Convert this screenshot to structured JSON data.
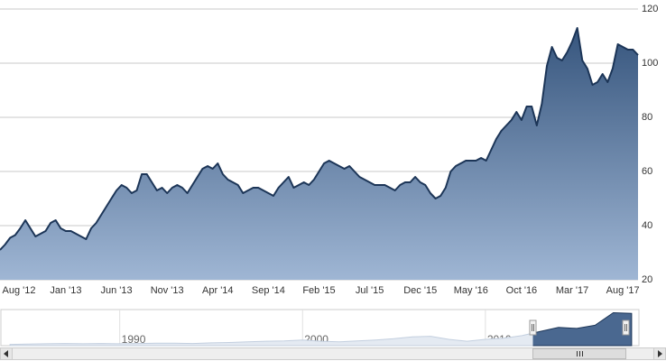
{
  "chart_data": [
    {
      "type": "area",
      "categories": [
        null,
        null,
        null,
        "Aug '12",
        null,
        null,
        null,
        null,
        null,
        null,
        null,
        null,
        null,
        "Jan '13",
        null,
        null,
        null,
        null,
        null,
        null,
        null,
        null,
        null,
        "Jun '13",
        null,
        null,
        null,
        null,
        null,
        null,
        null,
        null,
        null,
        "Nov '13",
        null,
        null,
        null,
        null,
        null,
        null,
        null,
        null,
        null,
        "Apr '14",
        null,
        null,
        null,
        null,
        null,
        null,
        null,
        null,
        null,
        "Sep '14",
        null,
        null,
        null,
        null,
        null,
        null,
        null,
        null,
        null,
        "Feb '15",
        null,
        null,
        null,
        null,
        null,
        null,
        null,
        null,
        null,
        "Jul '15",
        null,
        null,
        null,
        null,
        null,
        null,
        null,
        null,
        null,
        "Dec '15",
        null,
        null,
        null,
        null,
        null,
        null,
        null,
        null,
        null,
        "May '16",
        null,
        null,
        null,
        null,
        null,
        null,
        null,
        null,
        null,
        "Oct '16",
        null,
        null,
        null,
        null,
        null,
        null,
        null,
        null,
        null,
        "Mar '17",
        null,
        null,
        null,
        null,
        null,
        null,
        null,
        null,
        null,
        "Aug '17",
        null,
        null,
        null
      ],
      "values": [
        31,
        33,
        35.5,
        36.5,
        39,
        42,
        39,
        36,
        37,
        38,
        41,
        42,
        39,
        38,
        38,
        37,
        36,
        35,
        39,
        41,
        44,
        47,
        50,
        53,
        55,
        54,
        52,
        53,
        59,
        59,
        56,
        53,
        54,
        52,
        54,
        55,
        54,
        52,
        55,
        58,
        61,
        62,
        61,
        63,
        59,
        57,
        56,
        55,
        52,
        53,
        54,
        54,
        53,
        52,
        51,
        54,
        56,
        58,
        54,
        55,
        56,
        55,
        57,
        60,
        63,
        64,
        63,
        62,
        61,
        62,
        60,
        58,
        57,
        56,
        55,
        55,
        55,
        54,
        53,
        55,
        56,
        56,
        58,
        56,
        55,
        52,
        50,
        51,
        54,
        60,
        62,
        63,
        64,
        64,
        64,
        65,
        64,
        68,
        72,
        75,
        77,
        79,
        82,
        79,
        84,
        84,
        77,
        85,
        99,
        106,
        102,
        101,
        104,
        108,
        113,
        101,
        98,
        92,
        93,
        96,
        93,
        98,
        107,
        106,
        105,
        105,
        103
      ],
      "color": "#1c3557",
      "ylim": [
        20,
        120
      ],
      "yticks": [
        20,
        40,
        60,
        80,
        100,
        120
      ],
      "grid": true
    },
    {
      "type": "navigator",
      "x": [
        1984,
        1985,
        1986,
        1987,
        1988,
        1989,
        1990,
        1991,
        1992,
        1993,
        1994,
        1995,
        1996,
        1997,
        1998,
        1999,
        2000,
        2001,
        2002,
        2003,
        2004,
        2005,
        2006,
        2007,
        2008,
        2009,
        2010,
        2011,
        2012,
        2013,
        2014,
        2015,
        2016,
        2017,
        2018
      ],
      "values": [
        4,
        5,
        6,
        7,
        6,
        7,
        6,
        7,
        8,
        8,
        7,
        9,
        10,
        12,
        14,
        15,
        18,
        14,
        12,
        15,
        18,
        22,
        28,
        30,
        20,
        14,
        20,
        24,
        32,
        45,
        58,
        55,
        65,
        105,
        103
      ],
      "color": "#4a6890",
      "xlim": [
        1983.5,
        2018.4
      ],
      "xticks": [
        1990,
        2000,
        2010
      ],
      "ylim": [
        0,
        115
      ]
    }
  ]
}
